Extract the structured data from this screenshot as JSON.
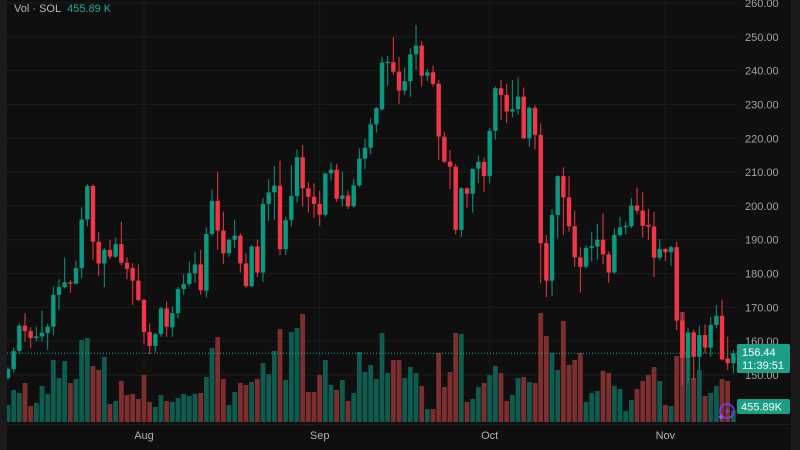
{
  "legend": {
    "label": "Vol · SOL",
    "value": "455.89 K"
  },
  "badges": {
    "price": "156.44",
    "countdown": "11:39:51",
    "volume": "455.89K"
  },
  "colors": {
    "up": "#089981",
    "down": "#f23645",
    "volume_up": "#0e5c50",
    "volume_down": "#7d2f2f",
    "background": "#0f0f0f",
    "accent_icon": "#7b3fe4"
  },
  "icons": {
    "bottom_right": "lightning-sparkle-icon"
  },
  "chart_data": {
    "type": "candlestick",
    "symbol": "SOL",
    "ylim": [
      150,
      260
    ],
    "y_ticks": [
      "260.00",
      "250.00",
      "240.00",
      "230.00",
      "220.00",
      "210.00",
      "200.00",
      "190.00",
      "180.00",
      "170.00",
      "160.00",
      "150.00"
    ],
    "x_ticks": [
      {
        "label": "Aug",
        "date": "Aug 01"
      },
      {
        "label": "Sep",
        "date": "Sep 01"
      },
      {
        "label": "Oct",
        "date": "Oct 01"
      },
      {
        "label": "Nov",
        "date": "Nov 01"
      }
    ],
    "grid": true,
    "last_price": 156.44,
    "volume_unit": "K",
    "candle_fields": [
      "date",
      "open",
      "high",
      "low",
      "close",
      "volume"
    ],
    "candles": [
      [
        "Jul 08",
        149.1,
        152.3,
        148.5,
        151.8,
        680
      ],
      [
        "Jul 09",
        151.8,
        158.1,
        150.7,
        157.1,
        1280
      ],
      [
        "Jul 10",
        157.1,
        165.3,
        156.2,
        164.6,
        1160
      ],
      [
        "Jul 11",
        164.6,
        168.3,
        159.9,
        163.0,
        1560
      ],
      [
        "Jul 12",
        163.0,
        164.1,
        157.9,
        160.9,
        640
      ],
      [
        "Jul 13",
        160.9,
        164.3,
        159.9,
        161.4,
        760
      ],
      [
        "Jul 14",
        161.4,
        169.0,
        159.9,
        162.5,
        1440
      ],
      [
        "Jul 15",
        162.4,
        165.1,
        157.4,
        164.3,
        1120
      ],
      [
        "Jul 16",
        164.3,
        176.2,
        161.8,
        173.7,
        2480
      ],
      [
        "Jul 17",
        173.7,
        178.3,
        169.2,
        176.0,
        1760
      ],
      [
        "Jul 18",
        176.0,
        184.8,
        175.6,
        177.4,
        2440
      ],
      [
        "Jul 19",
        177.4,
        178.1,
        174.3,
        177.0,
        1560
      ],
      [
        "Jul 20",
        177.0,
        183.8,
        176.9,
        181.6,
        1720
      ],
      [
        "Jul 21",
        181.6,
        199.6,
        178.6,
        196.0,
        3280
      ],
      [
        "Jul 22",
        196.0,
        206.4,
        194.0,
        205.9,
        3360
      ],
      [
        "Jul 23",
        205.9,
        206.3,
        184.1,
        189.4,
        2240
      ],
      [
        "Jul 24",
        189.4,
        192.2,
        179.4,
        183.0,
        2080
      ],
      [
        "Jul 25",
        183.0,
        187.5,
        176.0,
        187.0,
        2600
      ],
      [
        "Jul 26",
        187.0,
        189.9,
        184.2,
        185.0,
        720
      ],
      [
        "Jul 27",
        185.0,
        190.6,
        184.6,
        188.7,
        840
      ],
      [
        "Jul 28",
        188.7,
        195.3,
        182.5,
        183.2,
        1640
      ],
      [
        "Jul 29",
        183.2,
        184.8,
        178.3,
        181.4,
        1080
      ],
      [
        "Jul 30",
        181.6,
        183.0,
        170.7,
        177.9,
        1120
      ],
      [
        "Jul 31",
        177.9,
        182.7,
        171.8,
        172.2,
        920
      ],
      [
        "Aug 01",
        172.2,
        172.5,
        159.1,
        162.7,
        1880
      ],
      [
        "Aug 02",
        162.7,
        165.3,
        156.1,
        158.6,
        800
      ],
      [
        "Aug 03",
        158.6,
        162.5,
        156.6,
        162.1,
        600
      ],
      [
        "Aug 04",
        162.1,
        170.2,
        161.3,
        169.7,
        1080
      ],
      [
        "Aug 05",
        169.7,
        171.7,
        161.3,
        164.3,
        840
      ],
      [
        "Aug 06",
        164.1,
        170.2,
        161.3,
        168.3,
        800
      ],
      [
        "Aug 07",
        168.3,
        176.0,
        166.8,
        175.4,
        960
      ],
      [
        "Aug 08",
        175.4,
        179.8,
        173.7,
        176.9,
        1120
      ],
      [
        "Aug 09",
        176.9,
        183.5,
        176.2,
        180.1,
        1040
      ],
      [
        "Aug 10",
        180.1,
        186.3,
        177.2,
        182.7,
        1120
      ],
      [
        "Aug 11",
        182.7,
        187.0,
        173.7,
        175.1,
        1160
      ],
      [
        "Aug 12",
        174.9,
        193.7,
        173.0,
        191.7,
        1800
      ],
      [
        "Aug 13",
        191.7,
        204.9,
        191.0,
        201.5,
        2960
      ],
      [
        "Aug 14",
        201.5,
        210.0,
        187.0,
        192.7,
        3400
      ],
      [
        "Aug 15",
        192.7,
        198.3,
        182.9,
        186.0,
        1720
      ],
      [
        "Aug 16",
        186.0,
        190.3,
        185.0,
        190.0,
        680
      ],
      [
        "Aug 17",
        190.0,
        195.8,
        187.5,
        191.2,
        1200
      ],
      [
        "Aug 18",
        191.2,
        191.9,
        180.3,
        183.0,
        1560
      ],
      [
        "Aug 19",
        183.0,
        186.0,
        175.8,
        176.3,
        1480
      ],
      [
        "Aug 20",
        176.3,
        188.5,
        176.0,
        188.0,
        1600
      ],
      [
        "Aug 21",
        188.0,
        190.1,
        179.0,
        180.3,
        1720
      ],
      [
        "Aug 22",
        180.3,
        202.3,
        177.6,
        200.6,
        2360
      ],
      [
        "Aug 23",
        200.6,
        207.9,
        195.6,
        204.0,
        1920
      ],
      [
        "Aug 24",
        204.0,
        211.8,
        195.9,
        206.0,
        2840
      ],
      [
        "Aug 25",
        206.0,
        213.4,
        185.5,
        187.2,
        3720
      ],
      [
        "Aug 26",
        187.2,
        196.8,
        185.5,
        195.8,
        1680
      ],
      [
        "Aug 27",
        195.8,
        212.1,
        193.9,
        202.9,
        3600
      ],
      [
        "Aug 28",
        202.9,
        216.7,
        201.0,
        214.4,
        3760
      ],
      [
        "Aug 29",
        214.4,
        218.0,
        199.8,
        205.2,
        4320
      ],
      [
        "Aug 30",
        205.2,
        207.0,
        198.0,
        202.7,
        1200
      ],
      [
        "Aug 31",
        202.7,
        206.7,
        196.5,
        200.6,
        1200
      ],
      [
        "Sep 01",
        200.6,
        204.5,
        194.1,
        197.4,
        1880
      ],
      [
        "Sep 02",
        197.4,
        209.6,
        196.8,
        209.6,
        2480
      ],
      [
        "Sep 03",
        209.6,
        212.9,
        207.5,
        210.7,
        1480
      ],
      [
        "Sep 04",
        210.7,
        212.4,
        201.2,
        202.1,
        1280
      ],
      [
        "Sep 05",
        202.1,
        210.1,
        199.8,
        203.1,
        1680
      ],
      [
        "Sep 06",
        203.1,
        204.5,
        199.1,
        199.9,
        840
      ],
      [
        "Sep 07",
        199.9,
        208.0,
        199.5,
        206.1,
        1160
      ],
      [
        "Sep 08",
        206.1,
        217.0,
        205.6,
        214.0,
        2800
      ],
      [
        "Sep 09",
        214.0,
        219.8,
        210.9,
        217.2,
        2000
      ],
      [
        "Sep 10",
        217.2,
        225.9,
        215.3,
        224.1,
        2280
      ],
      [
        "Sep 11",
        224.1,
        229.2,
        221.7,
        228.9,
        1720
      ],
      [
        "Sep 12",
        228.6,
        244.1,
        228.2,
        242.4,
        3560
      ],
      [
        "Sep 13",
        242.2,
        244.3,
        235.5,
        242.6,
        1960
      ],
      [
        "Sep 14",
        242.5,
        250.0,
        238.8,
        239.7,
        2480
      ],
      [
        "Sep 15",
        239.7,
        244.1,
        230.1,
        234.1,
        2480
      ],
      [
        "Sep 16",
        234.1,
        240.9,
        232.8,
        236.9,
        1760
      ],
      [
        "Sep 17",
        236.9,
        246.6,
        232.3,
        244.8,
        2200
      ],
      [
        "Sep 18",
        244.8,
        253.5,
        240.2,
        247.4,
        1960
      ],
      [
        "Sep 19",
        247.4,
        248.8,
        235.3,
        238.5,
        1440
      ],
      [
        "Sep 20",
        238.5,
        240.5,
        237.0,
        239.5,
        520
      ],
      [
        "Sep 21",
        239.5,
        241.5,
        235.4,
        236.1,
        520
      ],
      [
        "Sep 22",
        236.1,
        237.3,
        213.6,
        220.5,
        2760
      ],
      [
        "Sep 23",
        220.5,
        221.8,
        212.6,
        213.1,
        1400
      ],
      [
        "Sep 24",
        213.1,
        216.5,
        205.0,
        211.6,
        2000
      ],
      [
        "Sep 25",
        211.6,
        212.4,
        191.6,
        192.9,
        3560
      ],
      [
        "Sep 26",
        192.9,
        205.6,
        190.9,
        205.2,
        3520
      ],
      [
        "Sep 27",
        205.2,
        205.5,
        199.5,
        203.6,
        800
      ],
      [
        "Sep 28",
        203.6,
        211.0,
        198.0,
        211.0,
        920
      ],
      [
        "Sep 29",
        211.0,
        214.9,
        206.8,
        213.0,
        1400
      ],
      [
        "Sep 30",
        213.0,
        214.3,
        204.2,
        208.8,
        1560
      ],
      [
        "Oct 01",
        208.8,
        223.0,
        206.8,
        222.2,
        1880
      ],
      [
        "Oct 02",
        222.2,
        235.3,
        219.6,
        234.8,
        2240
      ],
      [
        "Oct 03",
        234.8,
        237.2,
        225.4,
        232.8,
        1960
      ],
      [
        "Oct 04",
        232.8,
        236.0,
        224.4,
        227.9,
        840
      ],
      [
        "Oct 05",
        227.9,
        237.2,
        226.2,
        228.6,
        1080
      ],
      [
        "Oct 06",
        228.6,
        238.0,
        227.0,
        232.3,
        1760
      ],
      [
        "Oct 07",
        232.3,
        235.0,
        219.7,
        220.0,
        1800
      ],
      [
        "Oct 08",
        220.0,
        229.4,
        217.5,
        229.0,
        1600
      ],
      [
        "Oct 09",
        229.0,
        229.8,
        216.7,
        221.0,
        1560
      ],
      [
        "Oct 10",
        221.0,
        224.4,
        177.1,
        189.0,
        4360
      ],
      [
        "Oct 11",
        189.0,
        191.4,
        173.0,
        177.9,
        3440
      ],
      [
        "Oct 12",
        177.9,
        199.0,
        173.4,
        197.3,
        2760
      ],
      [
        "Oct 13",
        197.3,
        209.1,
        190.4,
        208.8,
        2080
      ],
      [
        "Oct 14",
        208.8,
        211.4,
        191.4,
        202.5,
        4040
      ],
      [
        "Oct 15",
        202.5,
        208.8,
        192.4,
        194.0,
        2280
      ],
      [
        "Oct 16",
        194.0,
        198.6,
        182.0,
        184.8,
        2480
      ],
      [
        "Oct 17",
        184.8,
        187.8,
        174.4,
        182.0,
        2760
      ],
      [
        "Oct 18",
        182.0,
        188.3,
        181.5,
        187.6,
        800
      ],
      [
        "Oct 19",
        187.6,
        192.4,
        183.5,
        188.1,
        1160
      ],
      [
        "Oct 20",
        188.0,
        194.7,
        184.2,
        190.0,
        1240
      ],
      [
        "Oct 21",
        190.0,
        197.8,
        182.7,
        185.7,
        2040
      ],
      [
        "Oct 22",
        185.7,
        186.5,
        177.3,
        180.3,
        1960
      ],
      [
        "Oct 23",
        180.3,
        193.4,
        180.0,
        191.4,
        1440
      ],
      [
        "Oct 24",
        191.4,
        196.8,
        191.0,
        193.7,
        1320
      ],
      [
        "Oct 25",
        193.7,
        195.3,
        191.6,
        194.1,
        440
      ],
      [
        "Oct 26",
        194.0,
        202.3,
        193.4,
        200.1,
        880
      ],
      [
        "Oct 27",
        200.1,
        205.4,
        197.5,
        198.6,
        1320
      ],
      [
        "Oct 28",
        198.6,
        204.0,
        190.6,
        194.1,
        1640
      ],
      [
        "Oct 29",
        194.4,
        199.1,
        190.0,
        193.9,
        1880
      ],
      [
        "Oct 30",
        193.9,
        198.3,
        179.0,
        184.7,
        2200
      ],
      [
        "Oct 31",
        184.7,
        190.2,
        183.9,
        187.3,
        1640
      ],
      [
        "Nov 01",
        187.3,
        187.5,
        183.7,
        186.3,
        680
      ],
      [
        "Nov 02",
        186.3,
        188.2,
        182.3,
        187.8,
        640
      ],
      [
        "Nov 03",
        187.8,
        189.4,
        163.3,
        166.1,
        2640
      ],
      [
        "Nov 04",
        166.1,
        168.5,
        146.9,
        155.1,
        4400
      ],
      [
        "Nov 05",
        155.1,
        164.0,
        147.6,
        162.6,
        2640
      ],
      [
        "Nov 06",
        162.6,
        163.5,
        148.5,
        155.4,
        1760
      ],
      [
        "Nov 07",
        155.4,
        164.6,
        151.5,
        161.8,
        2080
      ],
      [
        "Nov 08",
        161.8,
        165.0,
        156.4,
        158.1,
        1040
      ],
      [
        "Nov 09",
        158.1,
        167.2,
        155.4,
        164.8,
        1160
      ],
      [
        "Nov 10",
        164.8,
        170.7,
        163.8,
        167.5,
        1440
      ],
      [
        "Nov 11",
        167.5,
        172.2,
        154.3,
        154.6,
        1720
      ],
      [
        "Nov 12",
        154.9,
        161.3,
        151.5,
        153.5,
        1640
      ],
      [
        "Nov 13",
        153.5,
        157.4,
        150.5,
        156.44,
        455.89
      ]
    ]
  }
}
